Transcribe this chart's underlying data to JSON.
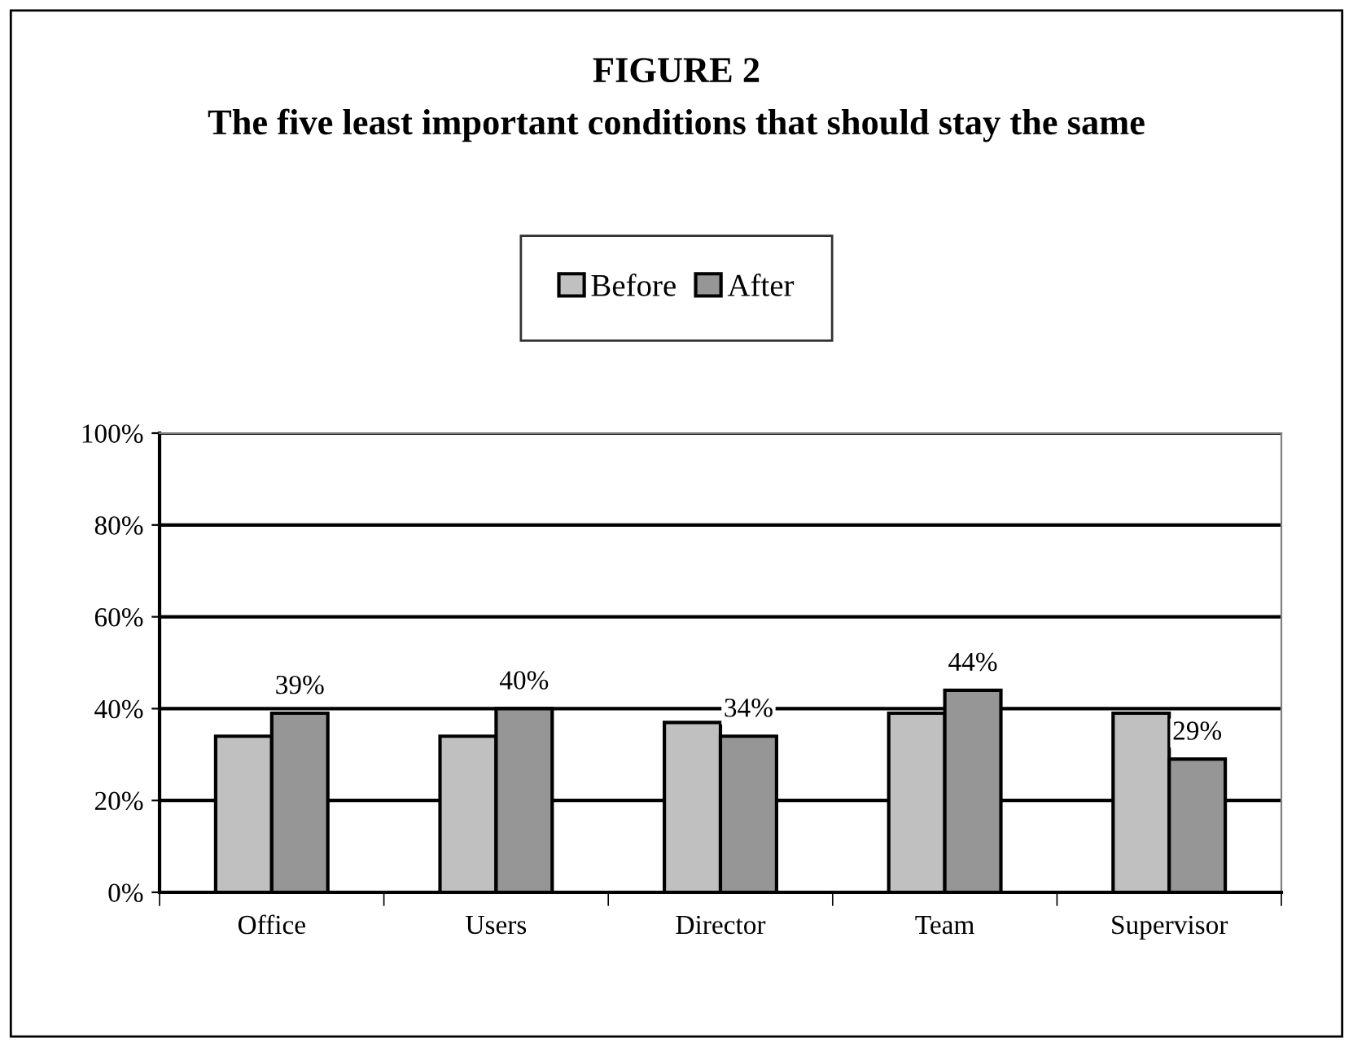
{
  "chart_data": {
    "type": "bar",
    "title": "FIGURE 2",
    "subtitle": "The five least important conditions that should stay the same",
    "categories": [
      "Office",
      "Users",
      "Director",
      "Team",
      "Supervisor"
    ],
    "series": [
      {
        "name": "Before",
        "color": "#c0c0c0",
        "values": [
          34,
          34,
          37,
          39,
          39
        ]
      },
      {
        "name": "After",
        "color": "#969696",
        "values": [
          39,
          40,
          34,
          44,
          29
        ],
        "value_labels": [
          "39%",
          "40%",
          "34%",
          "44%",
          "29%"
        ]
      }
    ],
    "ylim": [
      0,
      100
    ],
    "yticks": [
      {
        "value": 0,
        "label": "0%"
      },
      {
        "value": 20,
        "label": "20%"
      },
      {
        "value": 40,
        "label": "40%"
      },
      {
        "value": 60,
        "label": "60%"
      },
      {
        "value": 80,
        "label": "80%"
      },
      {
        "value": 100,
        "label": "100%"
      }
    ],
    "grid": "y",
    "legend": "top"
  }
}
